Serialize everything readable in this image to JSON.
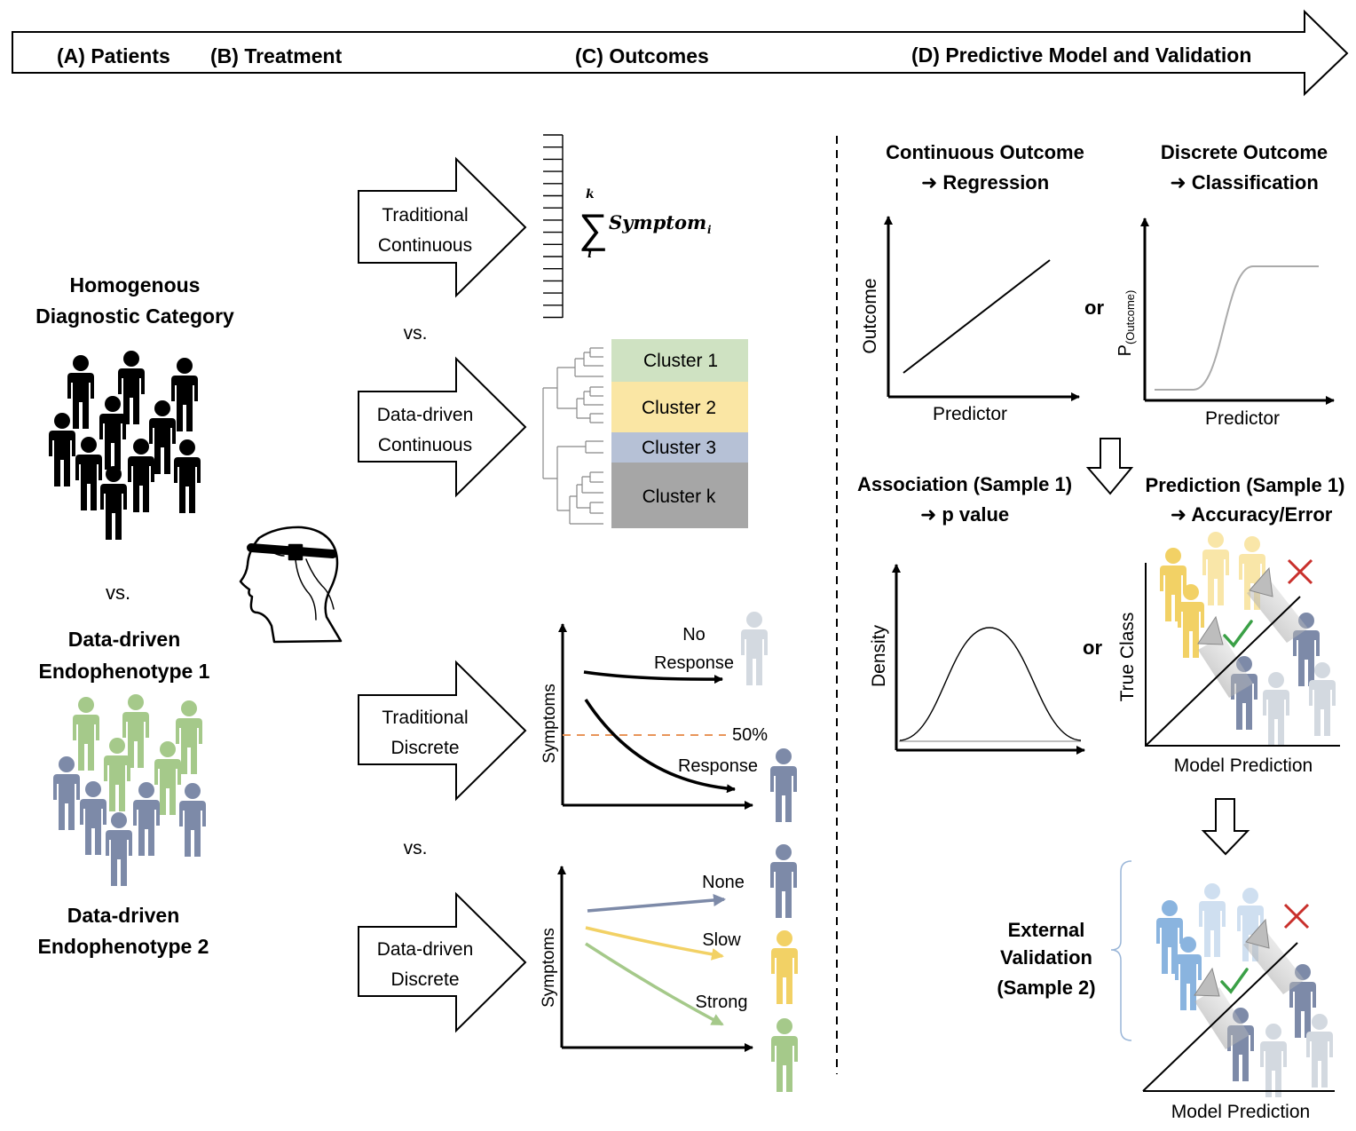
{
  "header": {
    "patients": "(A) Patients",
    "treatment": "(B) Treatment",
    "outcomes": "(C) Outcomes",
    "model": "(D) Predictive Model and Validation"
  },
  "patients": {
    "homogenous_line1": "Homogenous",
    "homogenous_line2": "Diagnostic Category",
    "vs": "vs.",
    "endo1_line1": "Data-driven",
    "endo1_line2": "Endophenotype 1",
    "endo2_line1": "Data-driven",
    "endo2_line2": "Endophenotype 2"
  },
  "outcomes": {
    "arrow1_line1": "Traditional",
    "arrow1_line2": "Continuous",
    "arrow2_line1": "Data-driven",
    "arrow2_line2": "Continuous",
    "arrow3_line1": "Traditional",
    "arrow3_line2": "Discrete",
    "arrow4_line1": "Data-driven",
    "arrow4_line2": "Discrete",
    "vs_top": "vs.",
    "vs_bottom": "vs.",
    "sum_upper": "k",
    "sum_lower": "i",
    "sum_term": "Symptom",
    "sum_sub": "i",
    "clusters": [
      {
        "label": "Cluster 1",
        "color": "#cfe2c2"
      },
      {
        "label": "Cluster 2",
        "color": "#fae6a4"
      },
      {
        "label": "Cluster 3",
        "color": "#b6c1d6"
      },
      {
        "label": "Cluster k",
        "color": "#a6a6a6"
      }
    ],
    "discrete_ylabel": "Symptoms",
    "no_response_line1": "No",
    "no_response_line2": "Response",
    "threshold": "50%",
    "response": "Response",
    "dd_ylabel": "Symptoms",
    "none": "None",
    "slow": "Slow",
    "strong": "Strong",
    "colors": {
      "gray": "#d3d9e0",
      "blue": "#7d8aa8",
      "yellow": "#f2d165",
      "green": "#a5c98a",
      "orange": "#e8955a"
    }
  },
  "model": {
    "cont_title1": "Continuous Outcome",
    "cont_title2": "➜ Regression",
    "disc_title1": "Discrete Outcome",
    "disc_title2": "➜ Classification",
    "reg_ylabel": "Outcome",
    "reg_xlabel": "Predictor",
    "or1": "or",
    "cls_ylabel_main": "P",
    "cls_ylabel_sub": "(Outcome)",
    "cls_xlabel": "Predictor",
    "assoc1": "Association (Sample 1)",
    "assoc2": "➜ p value",
    "pred1": "Prediction (Sample 1)",
    "pred2": "➜ Accuracy/Error",
    "density_ylabel": "Density",
    "or2": "or",
    "true_class": "True Class",
    "model_prediction": "Model Prediction",
    "ext1": "External",
    "ext2": "Validation",
    "ext3": "(Sample 2)",
    "model_prediction2": "Model Prediction"
  }
}
